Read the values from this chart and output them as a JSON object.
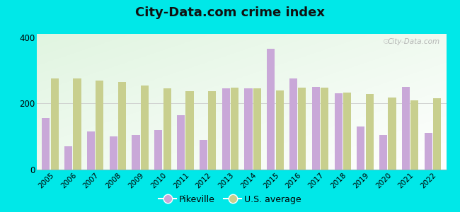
{
  "years": [
    2005,
    2006,
    2007,
    2008,
    2009,
    2010,
    2011,
    2012,
    2013,
    2014,
    2015,
    2016,
    2017,
    2018,
    2019,
    2020,
    2021,
    2022
  ],
  "pikeville": [
    155,
    70,
    115,
    100,
    105,
    120,
    165,
    90,
    245,
    245,
    365,
    275,
    250,
    230,
    130,
    105,
    250,
    110
  ],
  "us_average": [
    275,
    275,
    270,
    265,
    255,
    245,
    237,
    238,
    248,
    245,
    240,
    248,
    248,
    232,
    228,
    218,
    210,
    215
  ],
  "title": "City-Data.com crime index",
  "pikeville_color": "#c9a8d8",
  "us_avg_color": "#c8cf8e",
  "outer_bg": "#00e8e8",
  "ylim": [
    0,
    410
  ],
  "yticks": [
    0,
    200,
    400
  ],
  "title_fontsize": 13,
  "watermark_text": "City-Data.com",
  "legend_pikeville": "Pikeville",
  "legend_us": "U.S. average"
}
